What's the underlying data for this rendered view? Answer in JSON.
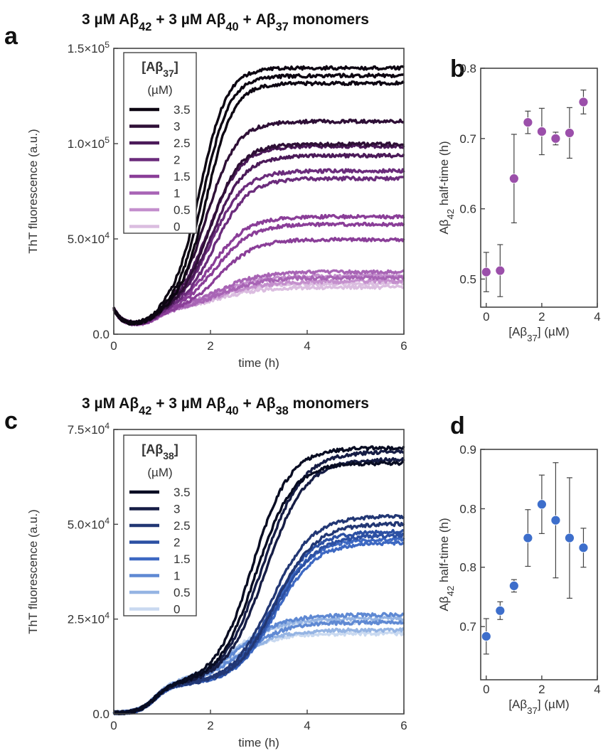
{
  "chart_data": [
    {
      "panel": "a",
      "type": "line",
      "title": "3 µM Aβ42 + 3 µM Aβ40 + Aβ37 monomers",
      "title_parts": [
        "3 µM Aβ",
        "42",
        " + 3 µM Aβ",
        "40",
        " + Aβ",
        "37",
        " monomers"
      ],
      "xlabel": "time (h)",
      "ylabel": "ThT fluorescence (a.u.)",
      "xlim": [
        0,
        6
      ],
      "ylim": [
        0,
        150000
      ],
      "xticks": [
        "0",
        "2",
        "4",
        "6"
      ],
      "yticks": [
        "0.0",
        "5.0×10",
        "1.0×10",
        "1.5×10"
      ],
      "ytick_exponent": "4",
      "ytick_exponents": [
        "",
        "4",
        "5",
        "5"
      ],
      "legend": {
        "title": "[Aβ37]",
        "title_parts": [
          "[Aβ",
          "37",
          "]"
        ],
        "unit": "(µM)",
        "placement": "top-left"
      },
      "grid": false,
      "series": [
        {
          "name": "3.5",
          "color": "#0d0612",
          "lag": 1.55,
          "k": 3.6,
          "curves": [
            {
              "plateau": 140000
            },
            {
              "plateau": 136000
            },
            {
              "plateau": 132000
            }
          ]
        },
        {
          "name": "3",
          "color": "#2e0f36",
          "lag": 1.65,
          "k": 3.2,
          "curves": [
            {
              "plateau": 112000
            },
            {
              "plateau": 100000
            }
          ]
        },
        {
          "name": "2.5",
          "color": "#4b1a59",
          "lag": 1.7,
          "k": 3.0,
          "curves": [
            {
              "plateau": 99000
            },
            {
              "plateau": 94000
            }
          ]
        },
        {
          "name": "2",
          "color": "#6b2c7c",
          "lag": 1.75,
          "k": 2.9,
          "curves": [
            {
              "plateau": 86000
            },
            {
              "plateau": 82000
            }
          ]
        },
        {
          "name": "1.5",
          "color": "#8a3e98",
          "lag": 1.8,
          "k": 2.7,
          "curves": [
            {
              "plateau": 62000
            },
            {
              "plateau": 58000
            },
            {
              "plateau": 50000
            }
          ]
        },
        {
          "name": "1",
          "color": "#a864b5",
          "lag": 1.8,
          "k": 2.2,
          "curves": [
            {
              "plateau": 33000
            },
            {
              "plateau": 30000
            }
          ]
        },
        {
          "name": "0.5",
          "color": "#c48fcd",
          "lag": 1.75,
          "k": 2.0,
          "curves": [
            {
              "plateau": 31000
            },
            {
              "plateau": 28000
            }
          ]
        },
        {
          "name": "0",
          "color": "#dbbde0",
          "lag": 1.7,
          "k": 2.0,
          "curves": [
            {
              "plateau": 27000
            },
            {
              "plateau": 25000
            }
          ]
        }
      ]
    },
    {
      "panel": "b",
      "type": "scatter",
      "xlabel": "[Aβ37] (µM)",
      "xlabel_parts": [
        "[Aβ",
        "37",
        "] (µM)"
      ],
      "ylabel": "Aβ42 half-time (h)",
      "ylabel_parts": [
        "Aβ",
        "42",
        " half-time (h)"
      ],
      "xlim": [
        -0.2,
        4
      ],
      "ylim": [
        0.46,
        0.8
      ],
      "xticks": [
        0,
        2,
        4
      ],
      "yticks": [
        0.5,
        0.6,
        0.7,
        0.8
      ],
      "ytick_labels": [
        "0.5",
        "0.6",
        "0.7",
        "0.8"
      ],
      "color": "#9b4faa",
      "x": [
        0,
        0.5,
        1,
        1.5,
        2,
        2.5,
        3,
        3.5
      ],
      "y": [
        0.51,
        0.512,
        0.643,
        0.723,
        0.71,
        0.7,
        0.708,
        0.752
      ],
      "err": [
        0.028,
        0.037,
        0.063,
        0.016,
        0.033,
        0.009,
        0.036,
        0.017
      ]
    },
    {
      "panel": "c",
      "type": "line",
      "title": "3 µM Aβ42 + 3 µM Aβ40 + Aβ38 monomers",
      "title_parts": [
        "3 µM Aβ",
        "42",
        " + 3 µM Aβ",
        "40",
        " + Aβ",
        "38",
        " monomers"
      ],
      "xlabel": "time (h)",
      "ylabel": "ThT fluorescence (a.u.)",
      "xlim": [
        0,
        6
      ],
      "ylim": [
        0,
        75000
      ],
      "xticks": [
        "0",
        "2",
        "4",
        "6"
      ],
      "yticks": [
        "0.0",
        "2.5×10",
        "5.0×10",
        "7.5×10"
      ],
      "ytick_exponent": "4",
      "ytick_exponents": [
        "",
        "4",
        "4",
        "4"
      ],
      "legend": {
        "title": "[Aβ38]",
        "title_parts": [
          "[Aβ",
          "38",
          "]"
        ],
        "unit": "(µM)",
        "placement": "top-left"
      },
      "grid": false,
      "series": [
        {
          "name": "3.5",
          "color": "#080c22",
          "lag": 2.6,
          "k": 2.6,
          "curves": [
            {
              "plateau": 70000
            },
            {
              "plateau": 66000
            }
          ]
        },
        {
          "name": "3",
          "color": "#161d45",
          "lag": 2.8,
          "k": 2.4,
          "curves": [
            {
              "plateau": 69000
            },
            {
              "plateau": 67000
            }
          ]
        },
        {
          "name": "2.5",
          "color": "#223774",
          "lag": 3.0,
          "k": 2.4,
          "curves": [
            {
              "plateau": 52000
            },
            {
              "plateau": 50000
            }
          ]
        },
        {
          "name": "2",
          "color": "#2c50a3",
          "lag": 3.0,
          "k": 2.4,
          "curves": [
            {
              "plateau": 48000
            },
            {
              "plateau": 47000
            }
          ]
        },
        {
          "name": "1.5",
          "color": "#3d68c2",
          "lag": 3.0,
          "k": 2.4,
          "curves": [
            {
              "plateau": 46000
            },
            {
              "plateau": 45000
            }
          ]
        },
        {
          "name": "1",
          "color": "#5f89d3",
          "lag": 2.3,
          "k": 2.2,
          "curves": [
            {
              "plateau": 26000
            },
            {
              "plateau": 24000
            }
          ]
        },
        {
          "name": "0.5",
          "color": "#95b4e3",
          "lag": 2.2,
          "k": 2.2,
          "curves": [
            {
              "plateau": 25000
            },
            {
              "plateau": 22000
            }
          ]
        },
        {
          "name": "0",
          "color": "#c9d9f0",
          "lag": 2.1,
          "k": 2.3,
          "curves": [
            {
              "plateau": 24000
            },
            {
              "plateau": 21000
            }
          ]
        }
      ]
    },
    {
      "panel": "d",
      "type": "scatter",
      "xlabel": "[Aβ37] (µM)",
      "xlabel_parts": [
        "[Aβ",
        "37",
        "] (µM)"
      ],
      "ylabel": "Aβ42 half-time (h)",
      "ylabel_parts": [
        "Aβ",
        "42",
        " half-time (h)"
      ],
      "xlim": [
        -0.2,
        4
      ],
      "ylim": [
        0.64,
        0.9
      ],
      "xticks": [
        0,
        2,
        4
      ],
      "yticks": [
        0.7,
        0.767,
        0.833,
        0.9
      ],
      "ytick_labels": [
        "0.7",
        "0.8",
        "0.8",
        "0.9"
      ],
      "color": "#3d6ecb",
      "x": [
        0,
        0.5,
        1,
        1.5,
        2,
        2.5,
        3,
        3.5
      ],
      "y": [
        0.689,
        0.718,
        0.746,
        0.8,
        0.838,
        0.82,
        0.8,
        0.789
      ],
      "err": [
        0.02,
        0.01,
        0.007,
        0.032,
        0.033,
        0.065,
        0.068,
        0.022
      ]
    }
  ],
  "panel_labels": {
    "a": "a",
    "b": "b",
    "c": "c",
    "d": "d"
  }
}
